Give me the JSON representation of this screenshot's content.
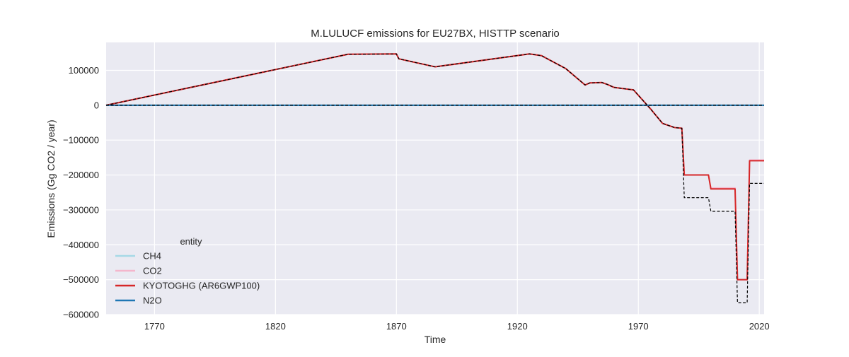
{
  "chart_data": {
    "type": "line",
    "title": "M.LULUCF emissions for EU27BX, HISTTP scenario",
    "xlabel": "Time",
    "ylabel": "Emissions (Gg CO2 / year)",
    "xlim": [
      1750,
      2022
    ],
    "ylim": [
      -600000,
      180000
    ],
    "xticks": [
      1770,
      1820,
      1870,
      1920,
      1970,
      2020
    ],
    "yticks": [
      100000,
      0,
      -100000,
      -200000,
      -300000,
      -400000,
      -500000,
      -600000
    ],
    "ytick_labels": [
      "100000",
      "0",
      "−100000",
      "−200000",
      "−300000",
      "−400000",
      "−500000",
      "−600000"
    ],
    "grid": true,
    "legend": {
      "title": "entity",
      "placement": "lower-left"
    },
    "colors": {
      "plot_background": "#eaeaf2",
      "grid": "#ffffff",
      "reference_dashed": "#000000"
    },
    "series": [
      {
        "name": "CH4",
        "color": "#a6d9e6",
        "points": [
          [
            1750,
            0
          ],
          [
            2022,
            0
          ]
        ]
      },
      {
        "name": "CO2",
        "color": "#f4b6cc",
        "points": [
          [
            1750,
            0
          ],
          [
            1850,
            146000
          ],
          [
            1870,
            147000
          ],
          [
            1871,
            133000
          ],
          [
            1886,
            110000
          ],
          [
            1925,
            147000
          ],
          [
            1930,
            142000
          ],
          [
            1940,
            105000
          ],
          [
            1948,
            58000
          ],
          [
            1950,
            64000
          ],
          [
            1955,
            65000
          ],
          [
            1957,
            60000
          ],
          [
            1960,
            51000
          ],
          [
            1968,
            44000
          ],
          [
            1975,
            -10000
          ],
          [
            1980,
            -52000
          ],
          [
            1985,
            -64000
          ],
          [
            1988,
            -66000
          ],
          [
            1989,
            -200000
          ],
          [
            1999,
            -200000
          ],
          [
            2000,
            -237000
          ],
          [
            2010,
            -237000
          ],
          [
            2011,
            -500000
          ],
          [
            2015,
            -500000
          ],
          [
            2016,
            -157000
          ],
          [
            2022,
            -157000
          ]
        ]
      },
      {
        "name": "KYOTOGHG (AR6GWP100)",
        "color": "#d62728",
        "points": [
          [
            1750,
            0
          ],
          [
            1850,
            146000
          ],
          [
            1870,
            147000
          ],
          [
            1871,
            133000
          ],
          [
            1886,
            110000
          ],
          [
            1925,
            147000
          ],
          [
            1930,
            142000
          ],
          [
            1940,
            105000
          ],
          [
            1948,
            58000
          ],
          [
            1950,
            64000
          ],
          [
            1955,
            65000
          ],
          [
            1957,
            60000
          ],
          [
            1960,
            51000
          ],
          [
            1968,
            44000
          ],
          [
            1975,
            -10000
          ],
          [
            1980,
            -52000
          ],
          [
            1985,
            -64000
          ],
          [
            1988,
            -66000
          ],
          [
            1989,
            -200000
          ],
          [
            1999,
            -200000
          ],
          [
            2000,
            -240000
          ],
          [
            2010,
            -240000
          ],
          [
            2011,
            -500000
          ],
          [
            2015,
            -500000
          ],
          [
            2016,
            -159000
          ],
          [
            2022,
            -159000
          ]
        ]
      },
      {
        "name": "N2O",
        "color": "#1f77b4",
        "points": [
          [
            1750,
            0
          ],
          [
            2022,
            0
          ]
        ]
      }
    ],
    "reference_lines": [
      {
        "style": "dashed",
        "color": "#000000",
        "points": [
          [
            1750,
            0
          ],
          [
            1850,
            146000
          ],
          [
            1870,
            147000
          ],
          [
            1871,
            133000
          ],
          [
            1886,
            110000
          ],
          [
            1925,
            147000
          ],
          [
            1930,
            142000
          ],
          [
            1940,
            105000
          ],
          [
            1948,
            58000
          ],
          [
            1950,
            64000
          ],
          [
            1955,
            65000
          ],
          [
            1957,
            60000
          ],
          [
            1960,
            51000
          ],
          [
            1968,
            44000
          ],
          [
            1975,
            -10000
          ],
          [
            1980,
            -52000
          ],
          [
            1985,
            -64000
          ],
          [
            1988,
            -66000
          ],
          [
            1989,
            -265000
          ],
          [
            1999,
            -265000
          ],
          [
            2000,
            -304000
          ],
          [
            2010,
            -304000
          ],
          [
            2011,
            -566000
          ],
          [
            2015,
            -566000
          ],
          [
            2016,
            -224000
          ],
          [
            2022,
            -224000
          ]
        ]
      },
      {
        "style": "dashed",
        "color": "#000000",
        "points": [
          [
            1750,
            0
          ],
          [
            2022,
            0
          ]
        ]
      }
    ]
  }
}
